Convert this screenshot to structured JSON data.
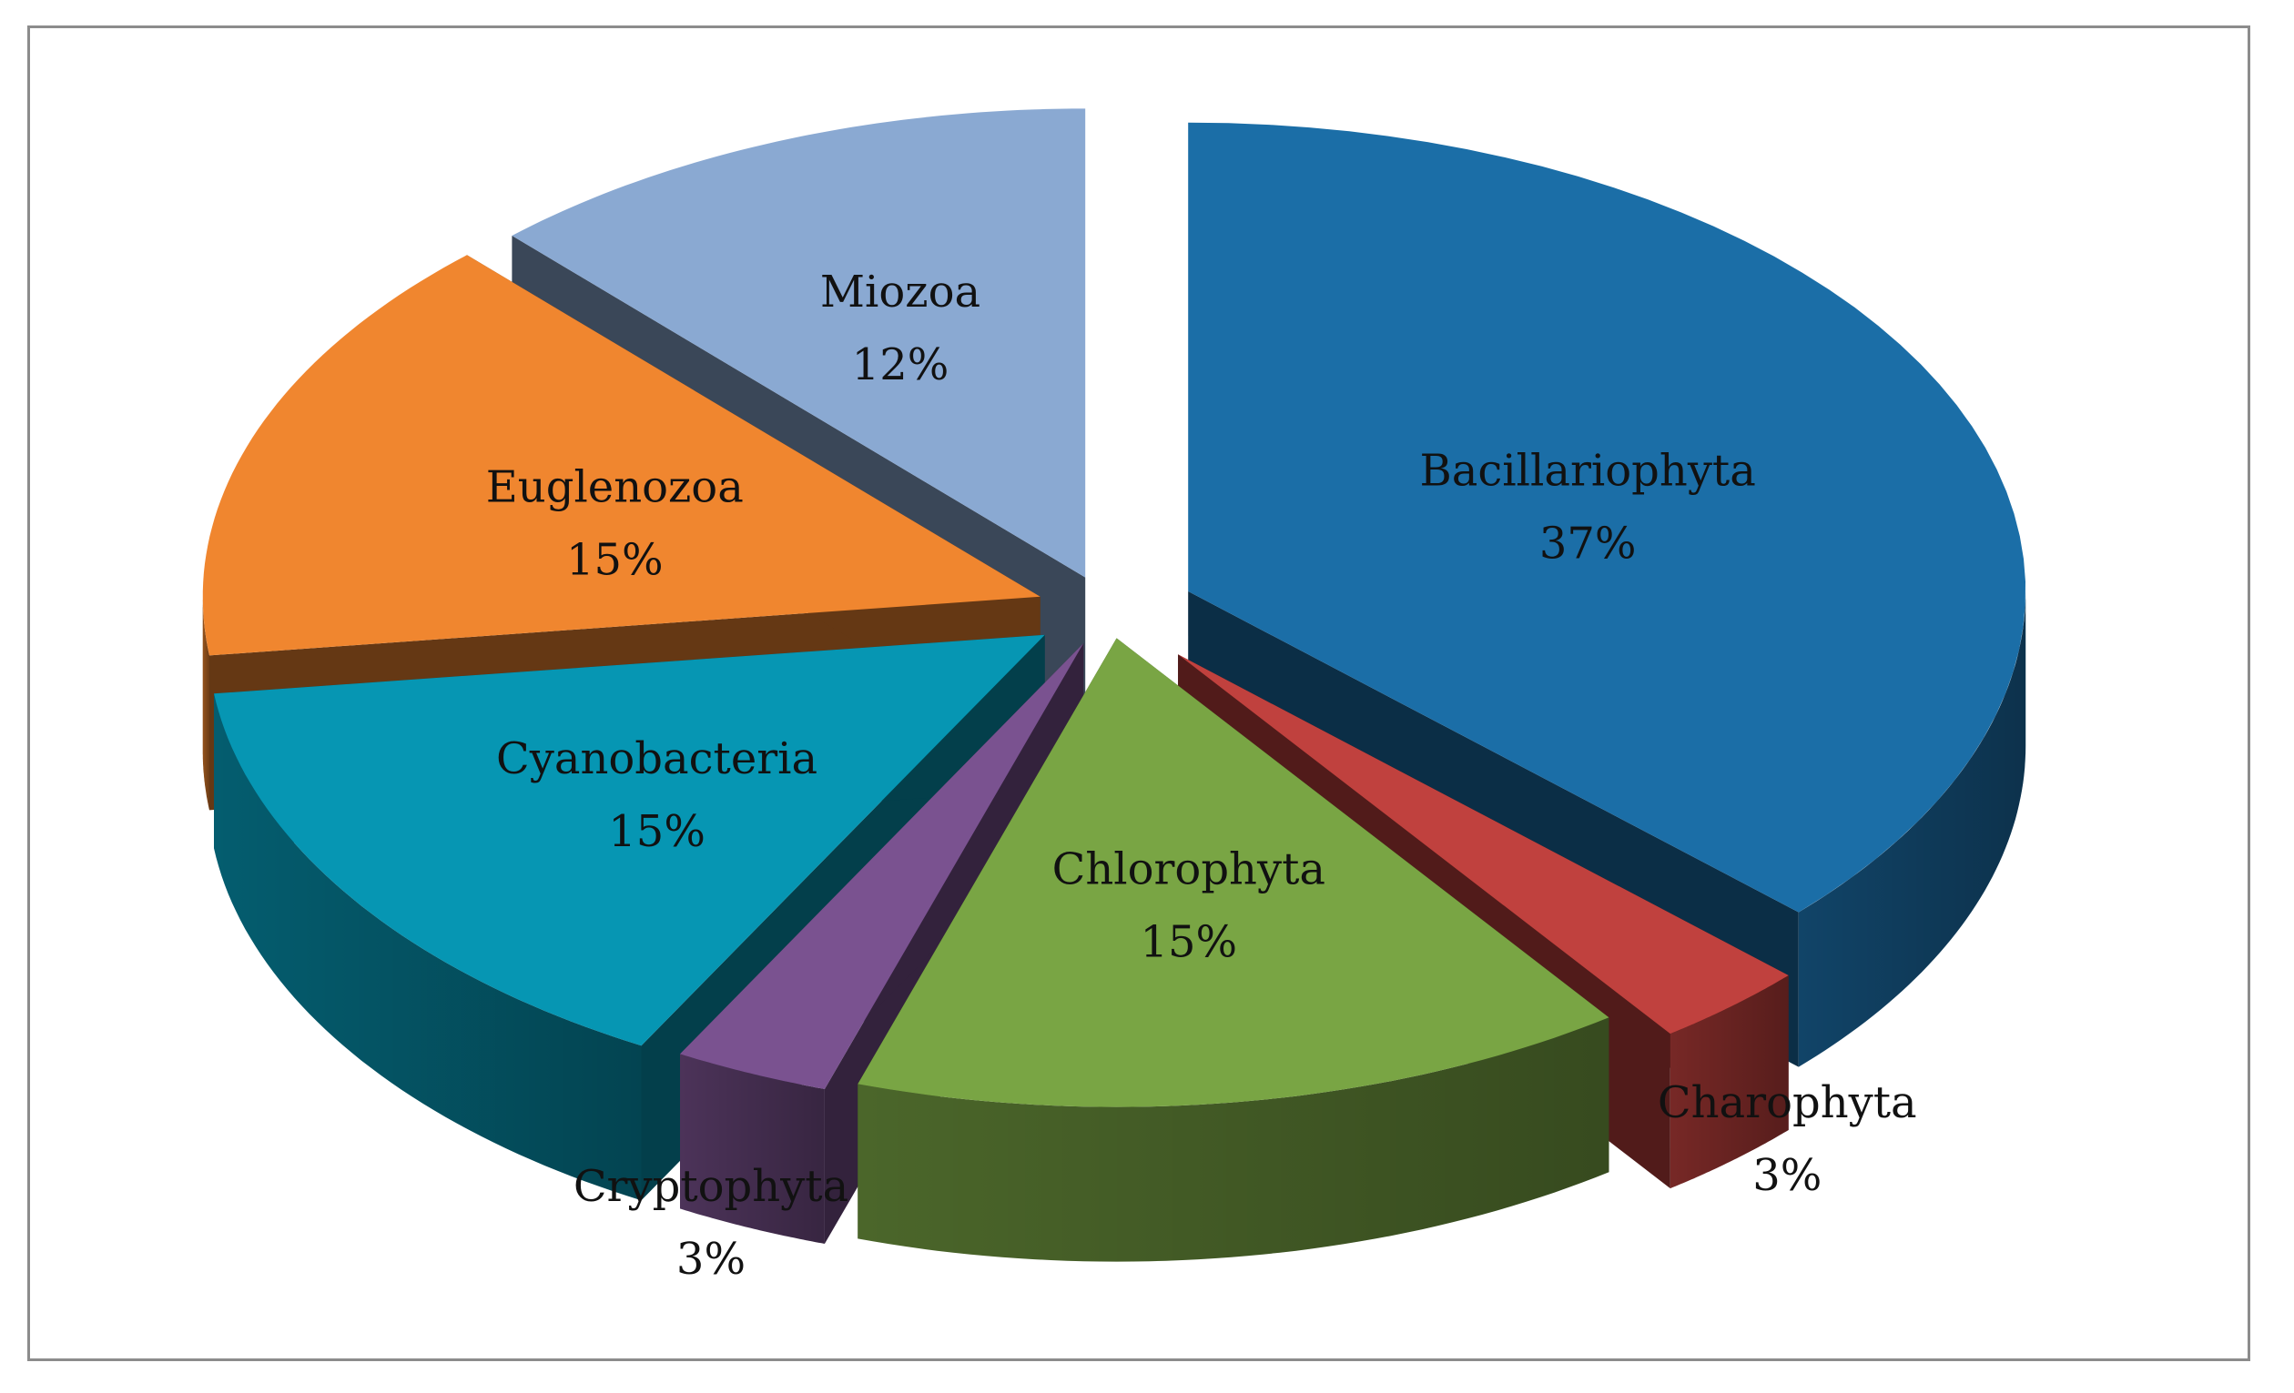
{
  "chart_data": {
    "type": "pie",
    "title": "",
    "slices": [
      {
        "name": "Bacillariophyta",
        "value": 37,
        "label": "37%",
        "color": "#1b6ea7"
      },
      {
        "name": "Charophyta",
        "value": 3,
        "label": "3%",
        "color": "#c0413e"
      },
      {
        "name": "Chlorophyta",
        "value": 15,
        "label": "15%",
        "color": "#79a544"
      },
      {
        "name": "Cryptophyta",
        "value": 3,
        "label": "3%",
        "color": "#7a5290"
      },
      {
        "name": "Cyanobacteria",
        "value": 15,
        "label": "15%",
        "color": "#0696b3"
      },
      {
        "name": "Euglenozoa",
        "value": 15,
        "label": "15%",
        "color": "#f0862f"
      },
      {
        "name": "Miozoa",
        "value": 12,
        "label": "12%",
        "color": "#8aa9d2"
      }
    ],
    "legend": "none",
    "style": "3d-exploded"
  }
}
